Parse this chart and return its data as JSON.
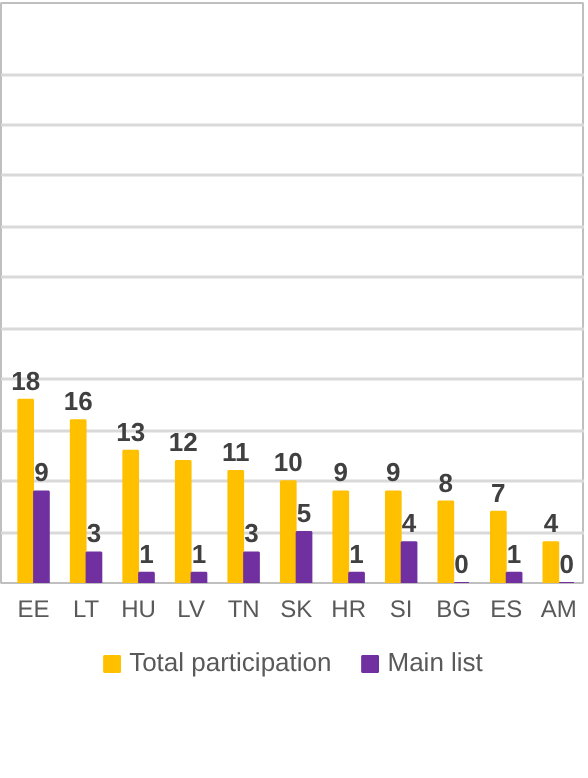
{
  "chart_data": {
    "type": "bar",
    "categories": [
      "EE",
      "LT",
      "HU",
      "LV",
      "TN",
      "SK",
      "HR",
      "SI",
      "BG",
      "ES",
      "AM"
    ],
    "series": [
      {
        "name": "Total participation",
        "color": "#ffc000",
        "values": [
          18,
          16,
          13,
          12,
          11,
          10,
          9,
          9,
          8,
          7,
          4
        ]
      },
      {
        "name": "Main list",
        "color": "#7030a0",
        "values": [
          9,
          3,
          1,
          1,
          3,
          5,
          1,
          4,
          0,
          1,
          0
        ]
      }
    ],
    "ylim": [
      0,
      57
    ],
    "yticks": [
      {
        "value": 0,
        "label": null
      },
      {
        "value": 5,
        "label": null
      },
      {
        "value": 10,
        "label": null
      },
      {
        "value": 15,
        "label": null
      },
      {
        "value": 20,
        "label": null
      },
      {
        "value": 25,
        "label": null
      },
      {
        "value": 30,
        "label": null
      },
      {
        "value": 35,
        "label": null
      },
      {
        "value": 40,
        "label": null
      },
      {
        "value": 45,
        "label": null
      },
      {
        "value": 50,
        "label": null
      }
    ],
    "tick_labels": "x",
    "grid": "y",
    "data_labels": true,
    "legend": "bottom"
  }
}
